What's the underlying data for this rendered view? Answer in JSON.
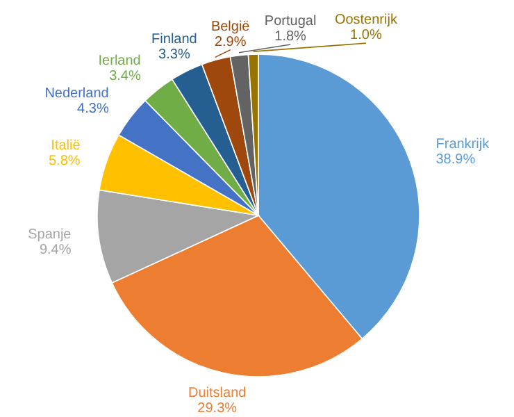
{
  "chart_data": {
    "type": "pie",
    "categories": [
      "Frankrijk",
      "Duitsland",
      "Spanje",
      "Italië",
      "Nederland",
      "Ierland",
      "Finland",
      "België",
      "Portugal",
      "Oostenrijk"
    ],
    "values": [
      38.9,
      29.3,
      9.4,
      5.8,
      4.3,
      3.4,
      3.3,
      2.9,
      1.8,
      1.0
    ],
    "value_labels": [
      "38.9%",
      "29.3%",
      "9.4%",
      "5.8%",
      "4.3%",
      "3.4%",
      "3.3%",
      "2.9%",
      "1.8%",
      "1.0%"
    ],
    "colors": [
      "#5b9bd5",
      "#ed7d31",
      "#a5a5a5",
      "#ffc000",
      "#4472c4",
      "#70ad47",
      "#255e91",
      "#9e480e",
      "#636363",
      "#997300"
    ],
    "legend": false
  }
}
